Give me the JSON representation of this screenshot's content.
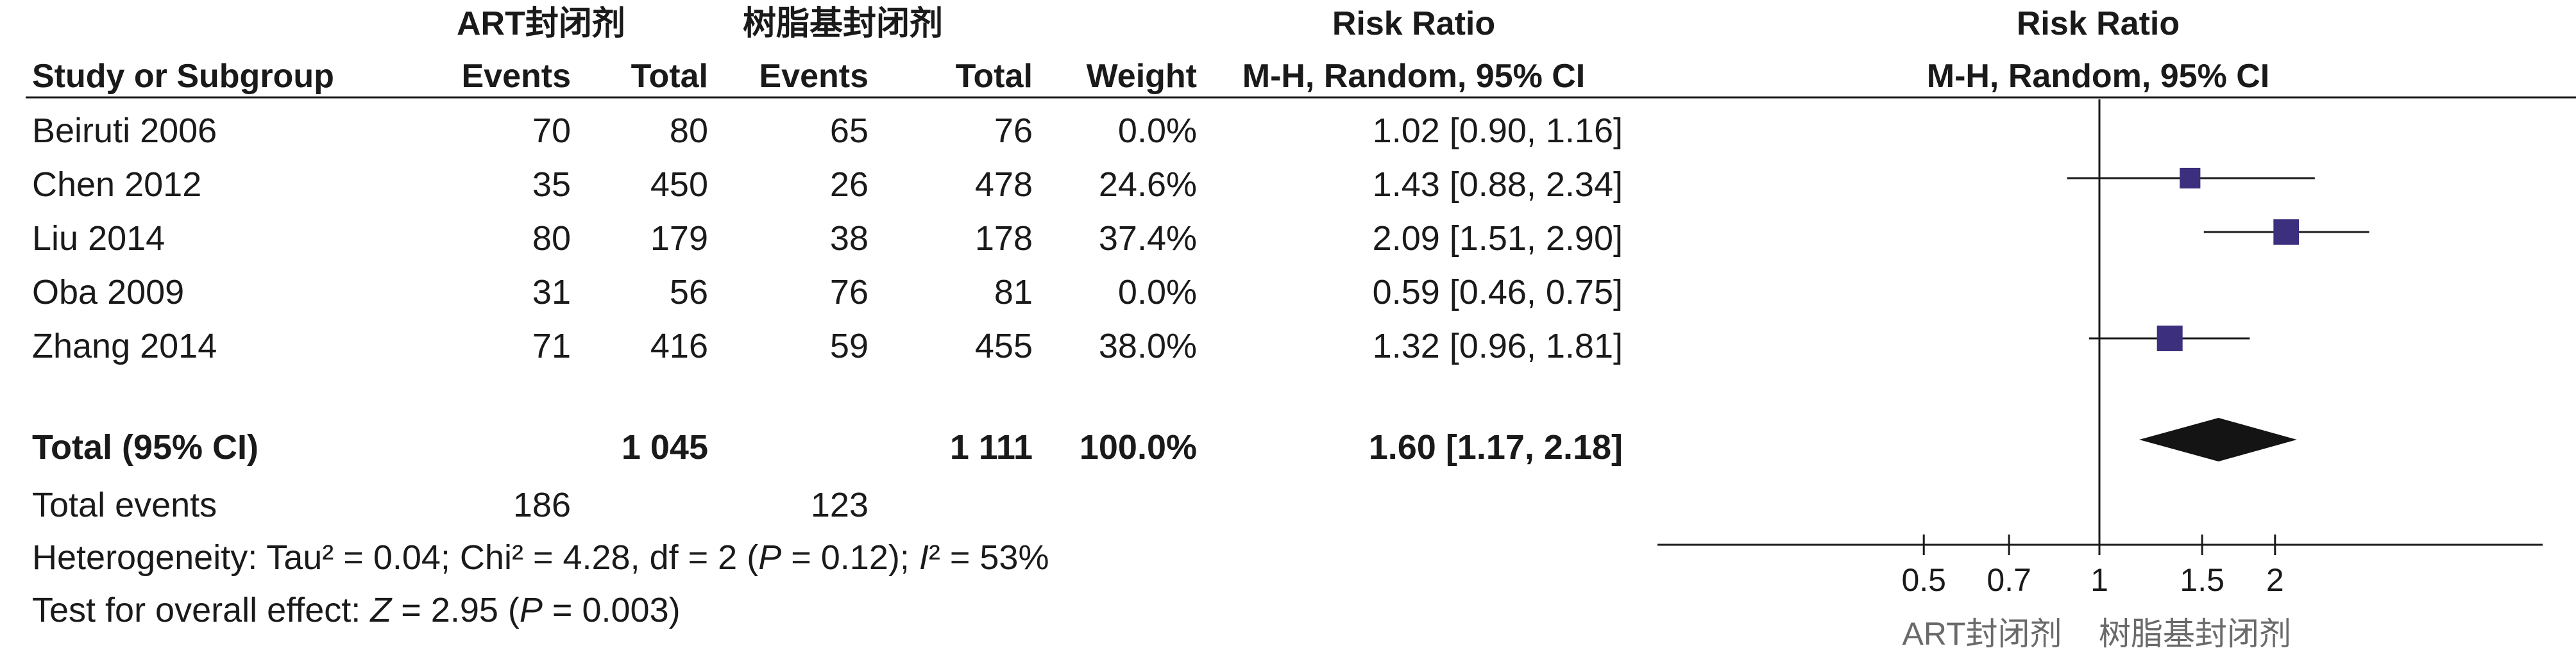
{
  "columns": {
    "group_a": "ART封闭剂",
    "group_b": "树脂基封闭剂",
    "study": "Study or Subgroup",
    "events_a": "Events",
    "total_a": "Total",
    "events_b": "Events",
    "total_b": "Total",
    "weight": "Weight",
    "rr_title": "Risk Ratio",
    "rr_method": "M-H, Random, 95% CI",
    "plot_title": "Risk Ratio",
    "plot_method": "M-H, Random, 95% CI"
  },
  "studies": [
    {
      "name": "Beiruti 2006",
      "events_a": "70",
      "total_a": "80",
      "events_b": "65",
      "total_b": "76",
      "weight": "0.0%",
      "ci_text": "1.02 [0.90, 1.16]"
    },
    {
      "name": "Chen 2012",
      "events_a": "35",
      "total_a": "450",
      "events_b": "26",
      "total_b": "478",
      "weight": "24.6%",
      "ci_text": "1.43 [0.88, 2.34]"
    },
    {
      "name": "Liu 2014",
      "events_a": "80",
      "total_a": "179",
      "events_b": "38",
      "total_b": "178",
      "weight": "37.4%",
      "ci_text": "2.09 [1.51, 2.90]"
    },
    {
      "name": "Oba 2009",
      "events_a": "31",
      "total_a": "56",
      "events_b": "76",
      "total_b": "81",
      "weight": "0.0%",
      "ci_text": "0.59 [0.46, 0.75]"
    },
    {
      "name": "Zhang 2014",
      "events_a": "71",
      "total_a": "416",
      "events_b": "59",
      "total_b": "455",
      "weight": "38.0%",
      "ci_text": "1.32 [0.96, 1.81]"
    }
  ],
  "total": {
    "label": "Total (95% CI)",
    "total_a": "1 045",
    "total_b": "1 111",
    "weight": "100.0%",
    "ci_text": "1.60 [1.17, 2.18]"
  },
  "total_events": {
    "label": "Total events",
    "events_a": "186",
    "events_b": "123"
  },
  "heterogeneity": {
    "prefix": "Heterogeneity: Tau² = 0.04; Chi² = 4.28, df = 2  (",
    "p_italic": "P",
    "p_value": " = 0.12);  ",
    "i2_italic": "I",
    "i2_rest": "² = 53%"
  },
  "overall_effect": {
    "prefix": "Test for overall effect: ",
    "z_italic": "Z",
    "z_value": " = 2.95  (",
    "p_italic": "P",
    "p_value": " = 0.003)"
  },
  "axis": {
    "favours_left": "ART封闭剂",
    "favours_right": "树脂基封闭剂"
  },
  "colors": {
    "marker": "#3b2f7e",
    "diamond": "#141414",
    "text": "#1a1a1a",
    "favours_text": "#6a6a6a"
  },
  "chart_data": {
    "type": "forest",
    "title": "Risk Ratio",
    "subtitle": "M-H, Random, 95% CI",
    "scale": "log",
    "null_line": 1,
    "xticks": [
      0.5,
      0.7,
      1,
      1.5,
      2
    ],
    "xtick_labels": [
      "0.5",
      "0.7",
      "1",
      "1.5",
      "2"
    ],
    "studies": [
      {
        "name": "Chen 2012",
        "estimate": 1.43,
        "ci_low": 0.88,
        "ci_high": 2.34,
        "weight": 24.6
      },
      {
        "name": "Liu 2014",
        "estimate": 2.09,
        "ci_low": 1.51,
        "ci_high": 2.9,
        "weight": 37.4
      },
      {
        "name": "Zhang 2014",
        "estimate": 1.32,
        "ci_low": 0.96,
        "ci_high": 1.81,
        "weight": 38.0
      }
    ],
    "pooled": {
      "estimate": 1.6,
      "ci_low": 1.17,
      "ci_high": 2.18
    }
  }
}
